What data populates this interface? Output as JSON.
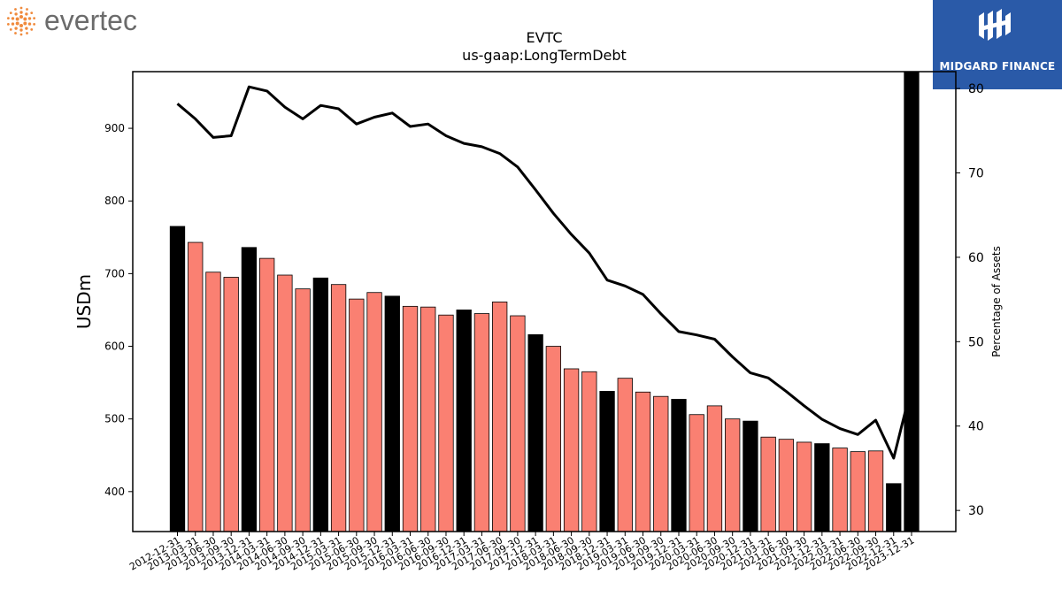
{
  "brand_left": {
    "name": "evertec",
    "color_text": "#6b6b6b",
    "color_dots": "#f08a3c"
  },
  "brand_right": {
    "name": "MIDGARD FINANCE",
    "background": "#2a5aa8"
  },
  "colors": {
    "bar_default": "#fa8072",
    "bar_highlight": "#000000",
    "line": "#000000"
  },
  "chart_data": {
    "type": "bar",
    "title": "EVTC",
    "subtitle": "us-gaap:LongTermDebt",
    "ylabel": "USDm",
    "y2label": "Percentage of Assets",
    "ylim": [
      345,
      978
    ],
    "y2lim": [
      27.5,
      82
    ],
    "yticks": [
      400,
      500,
      600,
      700,
      800,
      900
    ],
    "y2ticks": [
      30,
      40,
      50,
      60,
      70,
      80
    ],
    "categories": [
      "2012-12-31",
      "2013-03-31",
      "2013-06-30",
      "2013-09-30",
      "2013-12-31",
      "2014-03-31",
      "2014-06-30",
      "2014-09-30",
      "2014-12-31",
      "2015-03-31",
      "2015-06-30",
      "2015-09-30",
      "2015-12-31",
      "2016-03-31",
      "2016-06-30",
      "2016-09-30",
      "2016-12-31",
      "2017-03-31",
      "2017-06-30",
      "2017-09-30",
      "2017-12-31",
      "2018-03-31",
      "2018-06-30",
      "2018-09-30",
      "2018-12-31",
      "2019-03-31",
      "2019-06-30",
      "2019-09-30",
      "2019-12-31",
      "2020-03-31",
      "2020-06-30",
      "2020-09-30",
      "2020-12-31",
      "2021-03-31",
      "2021-06-30",
      "2021-09-30",
      "2021-12-31",
      "2022-03-31",
      "2022-06-30",
      "2022-09-30",
      "2022-12-31",
      "2023-12-31"
    ],
    "highlight_categories": [
      "2012-12-31",
      "2013-12-31",
      "2014-12-31",
      "2015-12-31",
      "2016-12-31",
      "2017-12-31",
      "2018-12-31",
      "2019-12-31",
      "2020-12-31",
      "2021-12-31",
      "2022-12-31",
      "2023-12-31"
    ],
    "series": [
      {
        "type": "bar",
        "axis": "left",
        "values": [
          765,
          743,
          702,
          695,
          736,
          721,
          698,
          679,
          694,
          685,
          665,
          674,
          669,
          655,
          654,
          643,
          650,
          645,
          661,
          642,
          616,
          600,
          569,
          565,
          538,
          556,
          537,
          531,
          527,
          506,
          518,
          500,
          497,
          475,
          472,
          468,
          466,
          460,
          455,
          456,
          411,
          978
        ]
      },
      {
        "type": "line",
        "axis": "right",
        "values": [
          78.2,
          76.4,
          74.2,
          74.4,
          80.2,
          79.7,
          77.8,
          76.4,
          78.0,
          77.6,
          75.8,
          76.6,
          77.1,
          75.5,
          75.8,
          74.4,
          73.5,
          73.1,
          72.3,
          70.7,
          68.0,
          65.2,
          62.7,
          60.5,
          57.3,
          56.6,
          55.6,
          53.3,
          51.2,
          50.8,
          50.3,
          48.2,
          46.3,
          45.7,
          44.1,
          42.4,
          40.8,
          39.7,
          39.0,
          40.7,
          36.2,
          44.7
        ]
      }
    ]
  }
}
